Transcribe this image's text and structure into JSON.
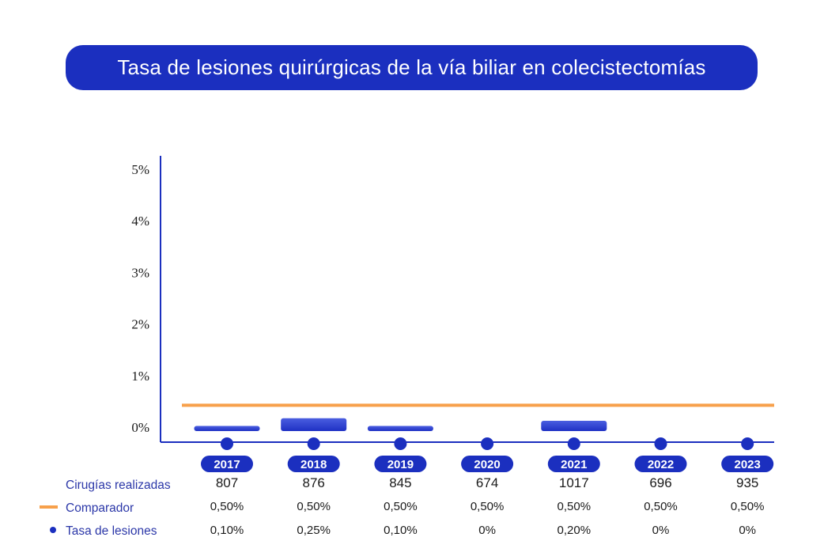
{
  "title": "Tasa de lesiones quirúrgicas de la vía biliar en colecistectomías",
  "colors": {
    "primary": "#1b2fbf",
    "comparator": "#f7a04b",
    "bar_top": "#4a5ee0",
    "bar_bottom": "#1f31c4"
  },
  "chart_data": {
    "type": "bar",
    "title": "Tasa de lesiones quirúrgicas de la vía biliar en colecistectomías",
    "categories": [
      "2017",
      "2018",
      "2019",
      "2020",
      "2021",
      "2022",
      "2023"
    ],
    "series": [
      {
        "name": "Tasa de lesiones",
        "values": [
          0.1,
          0.25,
          0.1,
          0,
          0.2,
          0,
          0
        ],
        "labels": [
          "0,10%",
          "0,25%",
          "0,10%",
          "0%",
          "0,20%",
          "0%",
          "0%"
        ]
      },
      {
        "name": "Comparador",
        "values": [
          0.5,
          0.5,
          0.5,
          0.5,
          0.5,
          0.5,
          0.5
        ],
        "labels": [
          "0,50%",
          "0,50%",
          "0,50%",
          "0,50%",
          "0,50%",
          "0,50%",
          "0,50%"
        ]
      }
    ],
    "cirugias": {
      "name": "Cirugías realizadas",
      "values": [
        807,
        876,
        845,
        674,
        1017,
        696,
        935
      ]
    },
    "yticks": [
      "0%",
      "1%",
      "2%",
      "3%",
      "4%",
      "5%"
    ],
    "ylim": [
      0,
      5
    ],
    "xlabel": "",
    "ylabel": "",
    "grid": false
  },
  "legend": {
    "cirugias": "Cirugías realizadas",
    "comparador": "Comparador",
    "tasa": "Tasa de lesiones"
  }
}
